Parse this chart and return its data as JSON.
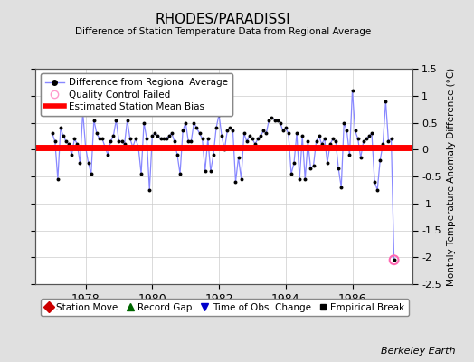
{
  "title": "RHODES/PARADISSI",
  "subtitle": "Difference of Station Temperature Data from Regional Average",
  "ylabel": "Monthly Temperature Anomaly Difference (°C)",
  "ylim": [
    -2.5,
    1.5
  ],
  "yticks": [
    -2.5,
    -2.0,
    -1.5,
    -1.0,
    -0.5,
    0.0,
    0.5,
    1.0,
    1.5
  ],
  "xlim": [
    1976.5,
    1987.8
  ],
  "xticks": [
    1978,
    1980,
    1982,
    1984,
    1986
  ],
  "mean_bias": 0.04,
  "line_color": "#8888ff",
  "marker_color": "#000000",
  "bias_color": "#ff0000",
  "bg_color": "#e0e0e0",
  "plot_bg_color": "#ffffff",
  "berkeley_earth_label": "Berkeley Earth",
  "legend1_entries": [
    {
      "label": "Difference from Regional Average"
    },
    {
      "label": "Quality Control Failed"
    },
    {
      "label": "Estimated Station Mean Bias"
    }
  ],
  "legend2_entries": [
    {
      "label": "Station Move",
      "color": "#ff0000",
      "marker": "D"
    },
    {
      "label": "Record Gap",
      "color": "#008000",
      "marker": "^"
    },
    {
      "label": "Time of Obs. Change",
      "color": "#0000ff",
      "marker": "v"
    },
    {
      "label": "Empirical Break",
      "color": "#000000",
      "marker": "s"
    }
  ],
  "data": {
    "times": [
      1977.0,
      1977.083,
      1977.167,
      1977.25,
      1977.333,
      1977.417,
      1977.5,
      1977.583,
      1977.667,
      1977.75,
      1977.833,
      1977.917,
      1978.0,
      1978.083,
      1978.167,
      1978.25,
      1978.333,
      1978.417,
      1978.5,
      1978.583,
      1978.667,
      1978.75,
      1978.833,
      1978.917,
      1979.0,
      1979.083,
      1979.167,
      1979.25,
      1979.333,
      1979.417,
      1979.5,
      1979.583,
      1979.667,
      1979.75,
      1979.833,
      1979.917,
      1980.0,
      1980.083,
      1980.167,
      1980.25,
      1980.333,
      1980.417,
      1980.5,
      1980.583,
      1980.667,
      1980.75,
      1980.833,
      1980.917,
      1981.0,
      1981.083,
      1981.167,
      1981.25,
      1981.333,
      1981.417,
      1981.5,
      1981.583,
      1981.667,
      1981.75,
      1981.833,
      1981.917,
      1982.0,
      1982.083,
      1982.167,
      1982.25,
      1982.333,
      1982.417,
      1982.5,
      1982.583,
      1982.667,
      1982.75,
      1982.833,
      1982.917,
      1983.0,
      1983.083,
      1983.167,
      1983.25,
      1983.333,
      1983.417,
      1983.5,
      1983.583,
      1983.667,
      1983.75,
      1983.833,
      1983.917,
      1984.0,
      1984.083,
      1984.167,
      1984.25,
      1984.333,
      1984.417,
      1984.5,
      1984.583,
      1984.667,
      1984.75,
      1984.833,
      1984.917,
      1985.0,
      1985.083,
      1985.167,
      1985.25,
      1985.333,
      1985.417,
      1985.5,
      1985.583,
      1985.667,
      1985.75,
      1985.833,
      1985.917,
      1986.0,
      1986.083,
      1986.167,
      1986.25,
      1986.333,
      1986.417,
      1986.5,
      1986.583,
      1986.667,
      1986.75,
      1986.833,
      1986.917,
      1987.0,
      1987.083,
      1987.167,
      1987.25
    ],
    "values": [
      0.3,
      0.15,
      -0.55,
      0.4,
      0.25,
      0.15,
      0.1,
      -0.1,
      0.2,
      0.1,
      -0.25,
      0.7,
      0.05,
      -0.25,
      -0.45,
      0.55,
      0.3,
      0.2,
      0.2,
      0.05,
      -0.1,
      0.15,
      0.25,
      0.55,
      0.15,
      0.15,
      0.1,
      0.55,
      0.2,
      0.05,
      0.2,
      0.05,
      -0.45,
      0.5,
      0.2,
      -0.75,
      0.25,
      0.3,
      0.25,
      0.2,
      0.2,
      0.2,
      0.25,
      0.3,
      0.15,
      -0.1,
      -0.45,
      0.35,
      0.5,
      0.15,
      0.15,
      0.5,
      0.4,
      0.3,
      0.2,
      -0.4,
      0.2,
      -0.4,
      -0.1,
      0.4,
      0.65,
      0.25,
      0.0,
      0.35,
      0.4,
      0.35,
      -0.6,
      -0.15,
      -0.55,
      0.3,
      0.15,
      0.25,
      0.2,
      0.1,
      0.2,
      0.25,
      0.35,
      0.3,
      0.55,
      0.6,
      0.55,
      0.55,
      0.5,
      0.35,
      0.4,
      0.3,
      -0.45,
      -0.25,
      0.3,
      -0.55,
      0.25,
      -0.55,
      0.15,
      -0.35,
      -0.3,
      0.15,
      0.25,
      0.1,
      0.2,
      -0.25,
      0.1,
      0.2,
      0.15,
      -0.35,
      -0.7,
      0.5,
      0.35,
      -0.1,
      1.1,
      0.35,
      0.2,
      -0.15,
      0.15,
      0.2,
      0.25,
      0.3,
      -0.6,
      -0.75,
      -0.2,
      0.1,
      0.9,
      0.15,
      0.2,
      -2.05
    ],
    "qc_failed_times": [
      1987.25
    ],
    "qc_failed_values": [
      -2.05
    ]
  }
}
